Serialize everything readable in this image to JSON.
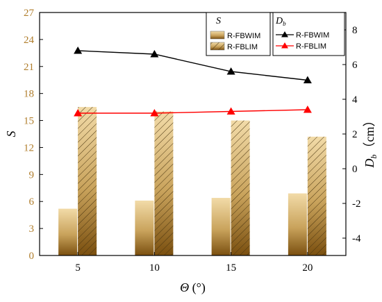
{
  "chart_data": {
    "type": "bar+line",
    "x": [
      5,
      10,
      15,
      20
    ],
    "xlabel": "Θ (°)",
    "ylabel_left": "S",
    "ylabel_right": "D_b (cm)",
    "ylim_left": [
      0,
      27
    ],
    "yticks_left": [
      0,
      3,
      6,
      9,
      12,
      15,
      18,
      21,
      24,
      27
    ],
    "ylim_right": [
      -5,
      9
    ],
    "yticks_right": [
      -4,
      -2,
      0,
      2,
      4,
      6,
      8
    ],
    "bar_series": [
      {
        "name": "R-FBWIM",
        "axis": "left",
        "values": [
          5.2,
          6.1,
          6.4,
          6.9
        ],
        "style": "gradient",
        "color": "#e8c98a"
      },
      {
        "name": "R-FBLIM",
        "axis": "left",
        "values": [
          16.5,
          16.0,
          15.0,
          13.2
        ],
        "style": "hatched-gradient",
        "color": "#e8c98a"
      }
    ],
    "line_series": [
      {
        "name": "R-FBWIM",
        "axis": "right",
        "values": [
          6.8,
          6.6,
          5.6,
          5.1
        ],
        "color": "#000000",
        "marker": "triangle"
      },
      {
        "name": "R-FBLIM",
        "axis": "right",
        "values": [
          3.2,
          3.2,
          3.3,
          3.4
        ],
        "color": "#ff0000",
        "marker": "triangle"
      }
    ],
    "legend_left": {
      "title": "S",
      "entries": [
        "R-FBWIM",
        "R-FBLIM"
      ]
    },
    "legend_right": {
      "title": "D_b",
      "entries": [
        "R-FBWIM",
        "R-FBLIM"
      ]
    },
    "legend_position": "top-right"
  }
}
